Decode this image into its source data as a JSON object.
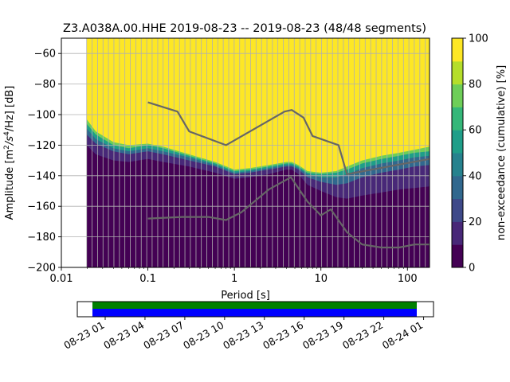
{
  "chart_data": {
    "type": "heatmap",
    "title": "Z3.A038A.00.HHE   2019-08-23 -- 2019-08-23  (48/48 segments)",
    "xlabel": "Period [s]",
    "ylabel": "Amplitude [m²/s⁴/Hz] [dB]",
    "ylabel_parts": {
      "prefix": "Amplitude [m",
      "sup1": "2",
      "mid": "/s",
      "sup2": "4",
      "suffix": "/Hz] [dB]"
    },
    "x_scale": "log",
    "xlim": [
      0.01,
      180
    ],
    "ylim": [
      -200,
      -50
    ],
    "x_ticks": [
      {
        "value": 0.01,
        "label": "0.01"
      },
      {
        "value": 0.1,
        "label": "0.1"
      },
      {
        "value": 1,
        "label": "1"
      },
      {
        "value": 10,
        "label": "10"
      },
      {
        "value": 100,
        "label": "100"
      }
    ],
    "y_ticks": [
      {
        "value": -60,
        "label": "−60"
      },
      {
        "value": -80,
        "label": "−80"
      },
      {
        "value": -100,
        "label": "−100"
      },
      {
        "value": -120,
        "label": "−120"
      },
      {
        "value": -140,
        "label": "−140"
      },
      {
        "value": -160,
        "label": "−160"
      },
      {
        "value": -180,
        "label": "−180"
      },
      {
        "value": -200,
        "label": "−200"
      }
    ],
    "data_x_min": 0.0196,
    "grid": true,
    "period_gridlines": [
      0.0196,
      0.0226,
      0.0262,
      0.0303,
      0.035,
      0.0405,
      0.0469,
      0.0542,
      0.0627,
      0.0725,
      0.0838,
      0.097,
      0.112,
      0.13,
      0.15,
      0.174,
      0.2,
      0.232,
      0.268,
      0.31,
      0.36,
      0.415,
      0.48,
      0.556,
      0.643,
      0.743,
      0.86,
      0.994,
      1.15,
      1.33,
      1.54,
      1.78,
      2.06,
      2.38,
      2.75,
      3.18,
      3.68,
      4.26,
      4.92,
      5.69,
      6.58,
      7.61,
      8.8,
      10.2,
      11.8,
      13.6,
      15.7,
      18.2,
      21.0,
      24.3,
      28.1,
      32.5,
      37.6,
      43.5,
      50.3,
      58.2,
      67.3,
      77.8,
      90.0,
      104,
      120,
      139,
      161
    ],
    "percentile_bands": {
      "x": [
        0.0196,
        0.025,
        0.04,
        0.06,
        0.1,
        0.15,
        0.3,
        0.6,
        1.0,
        1.5,
        2.5,
        4.0,
        4.6,
        5.5,
        7.0,
        10,
        15,
        20,
        30,
        50,
        80,
        120,
        180
      ],
      "p2": [
        -120,
        -126,
        -130,
        -131,
        -129,
        -131,
        -134,
        -138,
        -142,
        -141,
        -139,
        -136,
        -136,
        -139,
        -146,
        -150,
        -154,
        -155,
        -153,
        -151,
        -149,
        -148,
        -147
      ],
      "p20": [
        -113,
        -119,
        -124,
        -126,
        -124,
        -126,
        -130,
        -134,
        -139,
        -138,
        -136,
        -134,
        -134,
        -136,
        -141,
        -144,
        -146,
        -145,
        -141,
        -138,
        -136,
        -134,
        -133
      ],
      "p50": [
        -109,
        -116,
        -122,
        -124,
        -122,
        -124,
        -128,
        -133,
        -138,
        -137,
        -135,
        -133,
        -133,
        -135,
        -139,
        -141,
        -141,
        -139,
        -135,
        -132,
        -130,
        -128,
        -127
      ],
      "p80": [
        -106,
        -113,
        -120,
        -122,
        -120,
        -122,
        -127,
        -132,
        -137,
        -136,
        -134,
        -132,
        -132,
        -134,
        -138,
        -139,
        -138,
        -136,
        -132,
        -129,
        -127,
        -125,
        -124
      ],
      "p100": [
        -103,
        -111,
        -118,
        -120,
        -119,
        -121,
        -126,
        -131,
        -136,
        -135,
        -133,
        -131,
        -131,
        -133,
        -137,
        -138,
        -137,
        -134,
        -130,
        -127,
        -125,
        -123,
        -121
      ]
    },
    "series": [
      {
        "x": [
          0.1,
          0.22,
          0.3,
          0.8,
          3.8,
          4.6,
          6.3,
          8.0,
          16,
          20,
          180
        ],
        "y": [
          -92,
          -98,
          -111,
          -120,
          -98,
          -97,
          -102,
          -114,
          -120,
          -139,
          -129
        ]
      },
      {
        "x": [
          0.1,
          0.25,
          0.5,
          0.8,
          1.2,
          2.5,
          4.5,
          7.0,
          10,
          13,
          20,
          30,
          50,
          80,
          120,
          180
        ],
        "y": [
          -168,
          -167,
          -167,
          -169,
          -164,
          -149,
          -141,
          -157,
          -166,
          -162,
          -177,
          -185,
          -187,
          -187,
          -185,
          -185
        ]
      }
    ],
    "colorbar": {
      "label": "non-exceedance (cumulative) [%]",
      "ticks": [
        {
          "value": 0,
          "label": "0"
        },
        {
          "value": 20,
          "label": "20"
        },
        {
          "value": 40,
          "label": "40"
        },
        {
          "value": 60,
          "label": "60"
        },
        {
          "value": 80,
          "label": "80"
        },
        {
          "value": 100,
          "label": "100"
        }
      ],
      "colormap": [
        "#440154",
        "#482878",
        "#3e4989",
        "#31688e",
        "#26828e",
        "#1f9e89",
        "#35b779",
        "#6ece58",
        "#b5de2b",
        "#fde725"
      ]
    },
    "time_coverage": {
      "ticks": [
        "08-23 01",
        "08-23 04",
        "08-23 07",
        "08-23 10",
        "08-23 13",
        "08-23 16",
        "08-23 19",
        "08-23 22",
        "08-24 01"
      ],
      "colors": [
        "#008000",
        "#0000ff"
      ]
    }
  }
}
